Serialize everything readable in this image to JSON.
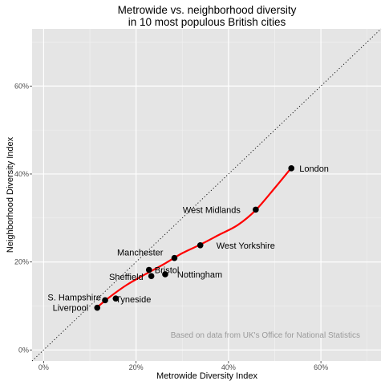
{
  "chart_data": {
    "type": "scatter",
    "title": "Metrowide vs. neighborhood diversity",
    "subtitle": "in 10 most populous British cities",
    "xlabel": "Metrowide Diversity Index",
    "ylabel": "Neighborhood Diversity Index",
    "xlim": [
      -0.025,
      0.73
    ],
    "ylim": [
      -0.025,
      0.73
    ],
    "x_ticks": [
      0,
      0.2,
      0.4,
      0.6
    ],
    "y_ticks": [
      0,
      0.2,
      0.4,
      0.6
    ],
    "x_tick_labels": [
      "0%",
      "20%",
      "40%",
      "60%"
    ],
    "y_tick_labels": [
      "0%",
      "20%",
      "40%",
      "60%"
    ],
    "grid": true,
    "background": "#e5e5e5",
    "reference_line": "y = x, dotted",
    "points": [
      {
        "label": "London",
        "x": 0.536,
        "y": 0.413
      },
      {
        "label": "West Midlands",
        "x": 0.459,
        "y": 0.319
      },
      {
        "label": "West Yorkshire",
        "x": 0.339,
        "y": 0.238
      },
      {
        "label": "Manchester",
        "x": 0.283,
        "y": 0.209
      },
      {
        "label": "Bristol",
        "x": 0.228,
        "y": 0.182
      },
      {
        "label": "Nottingham",
        "x": 0.263,
        "y": 0.172
      },
      {
        "label": "Sheffield",
        "x": 0.233,
        "y": 0.168
      },
      {
        "label": "Tyneside",
        "x": 0.156,
        "y": 0.117
      },
      {
        "label": "S. Hampshire",
        "x": 0.133,
        "y": 0.113
      },
      {
        "label": "Liverpool",
        "x": 0.116,
        "y": 0.096
      }
    ],
    "trend": {
      "color": "#ff0000",
      "x": [
        0.116,
        0.14,
        0.18,
        0.22,
        0.26,
        0.3,
        0.34,
        0.38,
        0.42,
        0.459,
        0.5,
        0.536
      ],
      "y": [
        0.097,
        0.118,
        0.148,
        0.172,
        0.195,
        0.22,
        0.24,
        0.262,
        0.284,
        0.318,
        0.368,
        0.414
      ]
    },
    "caption": "Based on data from UK's Office for National Statistics"
  }
}
